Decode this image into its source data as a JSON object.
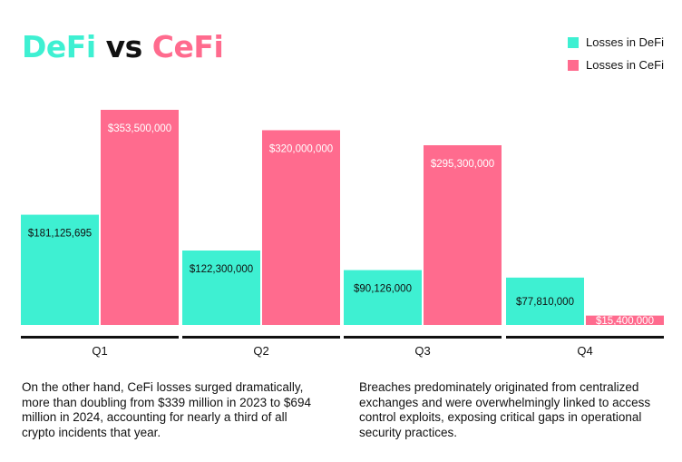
{
  "header": {
    "title_part1": "DeFi",
    "title_vs": "vs",
    "title_part2": "CeFi"
  },
  "colors": {
    "defi": "#3EF0D2",
    "cefi": "#FF6B8E",
    "text": "#111111"
  },
  "chart_data": {
    "type": "bar",
    "title": "DeFi vs CeFi",
    "categories": [
      "Q1",
      "Q2",
      "Q3",
      "Q4"
    ],
    "series": [
      {
        "name": "Losses in DeFi",
        "values": [
          181125695,
          122300000,
          90126000,
          77810000
        ],
        "labels": [
          "$181,125,695",
          "$122,300,000",
          "$90,126,000",
          "$77,810,000"
        ]
      },
      {
        "name": "Losses in CeFi",
        "values": [
          353500000,
          320000000,
          295300000,
          15400000
        ],
        "labels": [
          "$353,500,000",
          "$320,000,000",
          "$295,300,000",
          "$15,400,000"
        ]
      }
    ],
    "xlabel": "",
    "ylabel": "",
    "ylim": [
      0,
      353500000
    ],
    "grid": false,
    "legend_position": "top-right"
  },
  "paragraphs": {
    "left": "On the other hand, CeFi losses surged dramatically, more than doubling from $339 million in 2023 to $694 million in 2024, accounting for nearly a third of all crypto incidents that year.",
    "right": "Breaches predominately originated from centralized exchanges and were overwhelmingly linked to access control exploits, exposing critical gaps in operational security practices."
  }
}
